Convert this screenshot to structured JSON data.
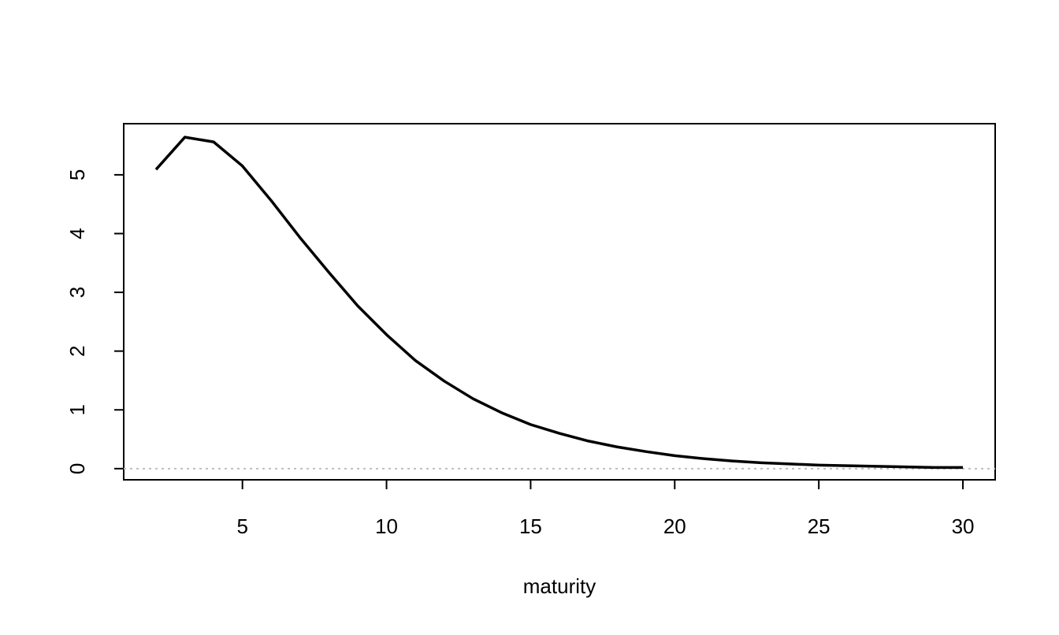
{
  "chart_data": {
    "type": "line",
    "xlabel": "maturity",
    "x": [
      2,
      3,
      4,
      5,
      6,
      7,
      8,
      9,
      10,
      11,
      12,
      13,
      14,
      15,
      16,
      17,
      18,
      19,
      20,
      21,
      22,
      23,
      24,
      25,
      26,
      27,
      28,
      29,
      30
    ],
    "values": [
      5.09,
      5.64,
      5.56,
      5.15,
      4.56,
      3.93,
      3.34,
      2.77,
      2.28,
      1.84,
      1.49,
      1.19,
      0.95,
      0.75,
      0.6,
      0.47,
      0.37,
      0.29,
      0.22,
      0.17,
      0.13,
      0.1,
      0.08,
      0.06,
      0.05,
      0.04,
      0.03,
      0.02,
      0.02
    ],
    "color": "#000000",
    "xlim": [
      0.88,
      31.12
    ],
    "ylim": [
      -0.19,
      5.87
    ],
    "xticks": [
      5,
      10,
      15,
      20,
      25,
      30
    ],
    "yticks": [
      0,
      1,
      2,
      3,
      4,
      5
    ],
    "reference_line": {
      "value": 0,
      "color": "#bebebe"
    }
  }
}
